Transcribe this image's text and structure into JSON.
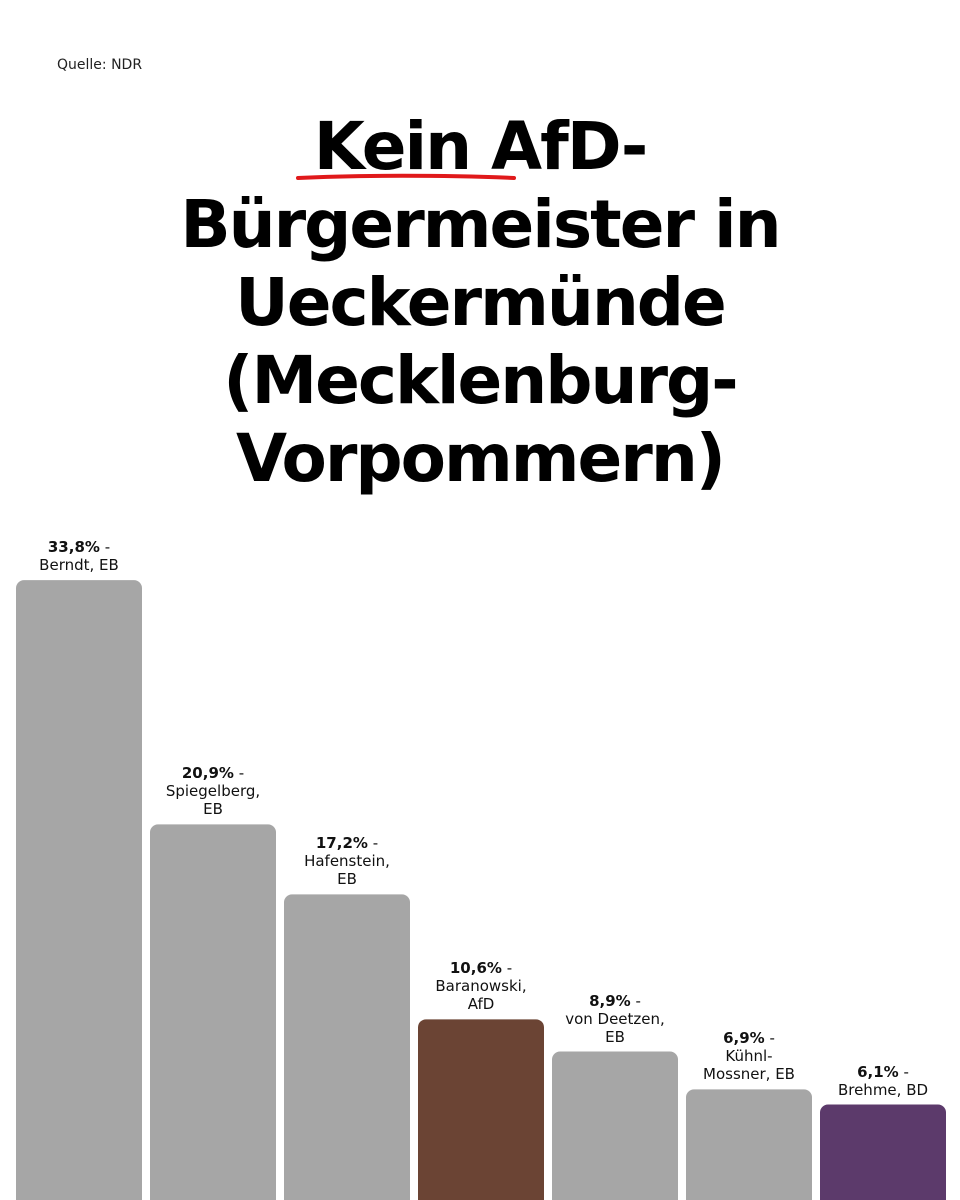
{
  "source": "Quelle: NDR",
  "headline": {
    "line1_emph": "Kein",
    "line1_rest": " AfD-",
    "line2": "Bürgermeister in",
    "line3": "Ueckermünde",
    "line4": "(Mecklenburg-",
    "line5": "Vorpommern)"
  },
  "colors": {
    "default_bar": "#a6a6a6",
    "afd_bar": "#6b4434",
    "bd_bar": "#5c3a6b",
    "underline": "#e0191b"
  },
  "chart_data": {
    "type": "bar",
    "values": [
      33.8,
      20.9,
      17.2,
      10.6,
      8.9,
      6.9,
      6.1
    ],
    "value_labels": [
      "33,8%",
      "20,9%",
      "17,2%",
      "10,6%",
      "8,9%",
      "6,9%",
      "6,1%"
    ],
    "label_lines": [
      [
        "Berndt, EB"
      ],
      [
        "Spiegelberg,",
        "EB"
      ],
      [
        "Hafenstein,",
        "EB"
      ],
      [
        "Baranowski,",
        "AfD"
      ],
      [
        "von Deetzen,",
        "EB"
      ],
      [
        "Kühnl-",
        "Mossner, EB"
      ],
      [
        "Brehme, BD"
      ]
    ],
    "bar_colors": [
      "#a6a6a6",
      "#a6a6a6",
      "#a6a6a6",
      "#6b4434",
      "#a6a6a6",
      "#a6a6a6",
      "#5c3a6b"
    ],
    "value_suffix": " -",
    "title": "",
    "xlabel": "",
    "ylabel": ""
  }
}
